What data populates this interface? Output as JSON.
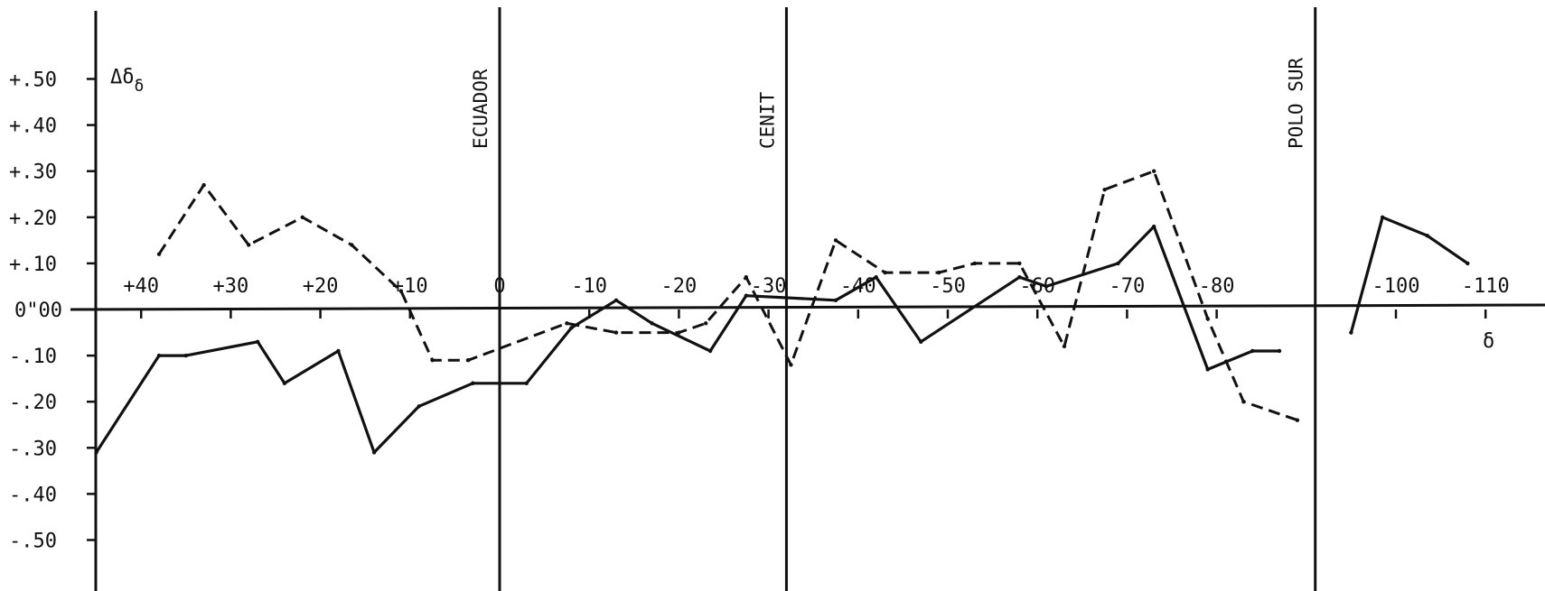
{
  "chart_data": {
    "type": "line",
    "xlabel": "δ",
    "ylabel": "Δδ",
    "ylabel_sub": "δ",
    "xlim": [
      47,
      -116
    ],
    "ylim": [
      -0.6,
      0.6
    ],
    "y_ticks": [
      {
        "value": 0.5,
        "label": "+.50"
      },
      {
        "value": 0.4,
        "label": "+.40"
      },
      {
        "value": 0.3,
        "label": "+.30"
      },
      {
        "value": 0.2,
        "label": "+.20"
      },
      {
        "value": 0.1,
        "label": "+.10"
      },
      {
        "value": 0.0,
        "label": "0\"00"
      },
      {
        "value": -0.1,
        "label": "-.10"
      },
      {
        "value": -0.2,
        "label": "-.20"
      },
      {
        "value": -0.3,
        "label": "-.30"
      },
      {
        "value": -0.4,
        "label": "-.40"
      },
      {
        "value": -0.5,
        "label": "-.50"
      }
    ],
    "x_ticks": [
      {
        "value": 40,
        "label": "+40"
      },
      {
        "value": 30,
        "label": "+30"
      },
      {
        "value": 20,
        "label": "+20"
      },
      {
        "value": 10,
        "label": "+10"
      },
      {
        "value": 0,
        "label": "0"
      },
      {
        "value": -10,
        "label": "-10"
      },
      {
        "value": -20,
        "label": "-20"
      },
      {
        "value": -30,
        "label": "-30"
      },
      {
        "value": -40,
        "label": "-40"
      },
      {
        "value": -50,
        "label": "-50"
      },
      {
        "value": -60,
        "label": "-60"
      },
      {
        "value": -70,
        "label": "-70"
      },
      {
        "value": -80,
        "label": "-80"
      },
      {
        "value": -100,
        "label": "-100"
      },
      {
        "value": -110,
        "label": "-110"
      }
    ],
    "reference_lines": [
      {
        "x": 0,
        "label": "ECUADOR"
      },
      {
        "x": -32,
        "label": "CENIT"
      },
      {
        "x": -91,
        "label": "POLO SUR"
      }
    ],
    "series": [
      {
        "style": "solid",
        "segments": [
          [
            [
              45,
              -0.31
            ],
            [
              38,
              -0.1
            ],
            [
              35,
              -0.1
            ],
            [
              27,
              -0.07
            ],
            [
              24,
              -0.16
            ],
            [
              18,
              -0.09
            ],
            [
              14,
              -0.31
            ],
            [
              9,
              -0.21
            ],
            [
              3,
              -0.16
            ],
            [
              -3,
              -0.16
            ],
            [
              -8,
              -0.04
            ],
            [
              -13,
              0.02
            ],
            [
              -17,
              -0.03
            ],
            [
              -23.5,
              -0.09
            ],
            [
              -27.5,
              0.03
            ],
            [
              -37.5,
              0.02
            ],
            [
              -42,
              0.07
            ],
            [
              -47,
              -0.07
            ],
            [
              -58,
              0.07
            ],
            [
              -61,
              0.05
            ],
            [
              -69,
              0.1
            ],
            [
              -73,
              0.18
            ],
            [
              -79,
              -0.13
            ],
            [
              -84,
              -0.09
            ],
            [
              -87,
              -0.09
            ]
          ],
          [
            [
              -95,
              -0.05
            ],
            [
              -98.5,
              0.2
            ],
            [
              -103.5,
              0.16
            ],
            [
              -108,
              0.1
            ]
          ]
        ]
      },
      {
        "style": "dashed",
        "segments": [
          [
            [
              38,
              0.12
            ],
            [
              33,
              0.27
            ],
            [
              28,
              0.14
            ],
            [
              22,
              0.2
            ],
            [
              16.5,
              0.14
            ],
            [
              11,
              0.04
            ],
            [
              7.5,
              -0.11
            ],
            [
              3.5,
              -0.11
            ],
            [
              -7.5,
              -0.03
            ],
            [
              -13,
              -0.05
            ],
            [
              -20,
              -0.05
            ],
            [
              -23,
              -0.03
            ],
            [
              -27.5,
              0.07
            ],
            [
              -32.5,
              -0.12
            ],
            [
              -37.5,
              0.15
            ],
            [
              -43,
              0.08
            ],
            [
              -49,
              0.08
            ],
            [
              -53,
              0.1
            ],
            [
              -58,
              0.1
            ],
            [
              -63,
              -0.08
            ],
            [
              -67.5,
              0.26
            ],
            [
              -73,
              0.3
            ],
            [
              -79,
              -0.02
            ],
            [
              -83,
              -0.2
            ],
            [
              -89,
              -0.24
            ]
          ]
        ]
      }
    ]
  }
}
